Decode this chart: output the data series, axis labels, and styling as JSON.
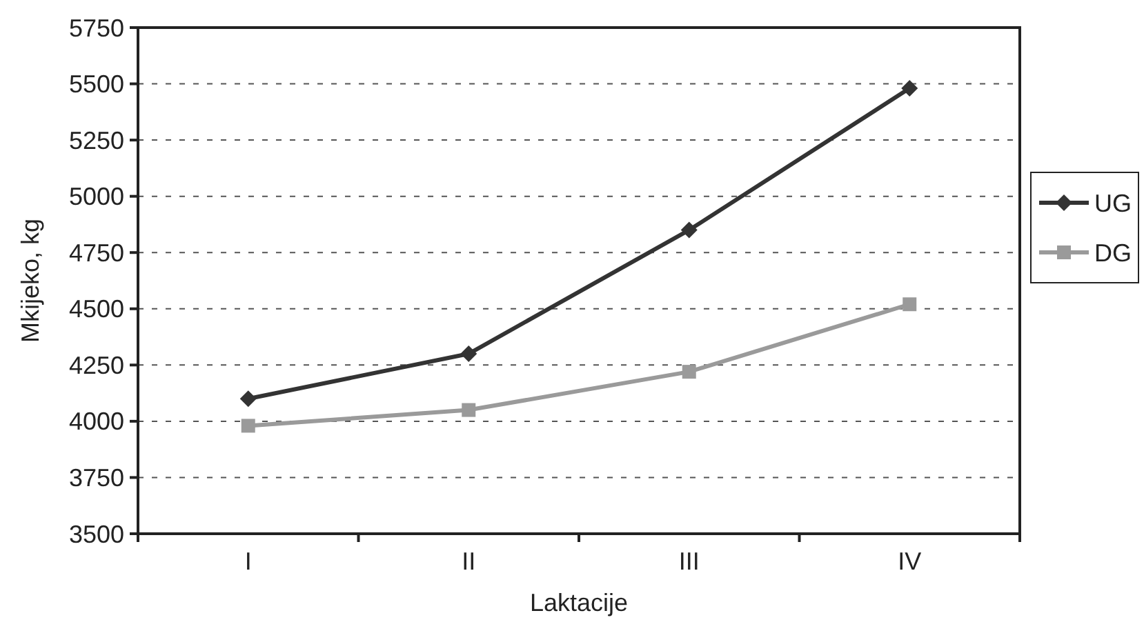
{
  "chart_data": {
    "type": "line",
    "xlabel": "Laktacije",
    "ylabel": "Mkijeko, kg",
    "categories": [
      "I",
      "II",
      "III",
      "IV"
    ],
    "series": [
      {
        "name": "UG",
        "color": "#333333",
        "marker": "diamond",
        "values": [
          4100,
          4300,
          4850,
          5480
        ]
      },
      {
        "name": "DG",
        "color": "#9a9a9a",
        "marker": "square",
        "values": [
          3980,
          4050,
          4220,
          4520
        ]
      }
    ],
    "ylim": [
      3500,
      5750
    ],
    "yticks": [
      3500,
      3750,
      4000,
      4250,
      4500,
      4750,
      5000,
      5250,
      5500,
      5750
    ],
    "grid": "y",
    "legend": "right",
    "line_style": "solid"
  }
}
